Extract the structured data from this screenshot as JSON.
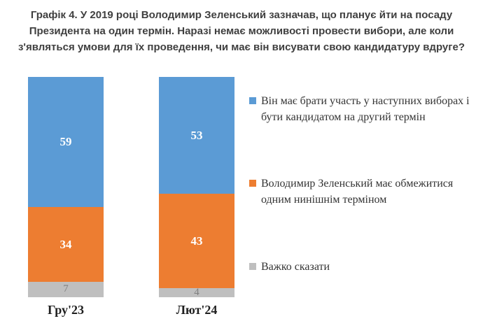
{
  "title": "Графік 4. У 2019 році Володимир Зеленський зазначав, що планує йти на посаду Президента на один термін. Наразі немає можливості провести вибори, але коли з'являться умови для їх проведення, чи має він висувати свою кандидатуру вдруге?",
  "chart_data": {
    "type": "bar",
    "subtype": "stacked-column-100",
    "stacked": true,
    "title": "Графік 4. У 2019 році Володимир Зеленський зазначав, що планує йти на посаду Президента на один термін. Наразі немає можливості провести вибори, але коли з'являться умови для їх проведення, чи має він висувати свою кандидатуру вдруге?",
    "categories": [
      "Гру'23",
      "Лют'24"
    ],
    "series": [
      {
        "name": "Він має брати участь у наступних виборах і бути кандидатом на другий термін",
        "values": [
          59,
          53
        ],
        "color": "#5b9bd5",
        "value_label_color": "#ffffff"
      },
      {
        "name": "Володимир Зеленський має обмежитися одним нинішнім терміном",
        "values": [
          34,
          43
        ],
        "color": "#ed7d31",
        "value_label_color": "#ffffff"
      },
      {
        "name": "Важко сказати",
        "values": [
          7,
          4
        ],
        "color": "#bfbfbf",
        "value_label_color": "#7f7f7f"
      }
    ],
    "ylim": [
      0,
      100
    ],
    "grid": false,
    "data_labels": true,
    "legend_position": "right"
  }
}
